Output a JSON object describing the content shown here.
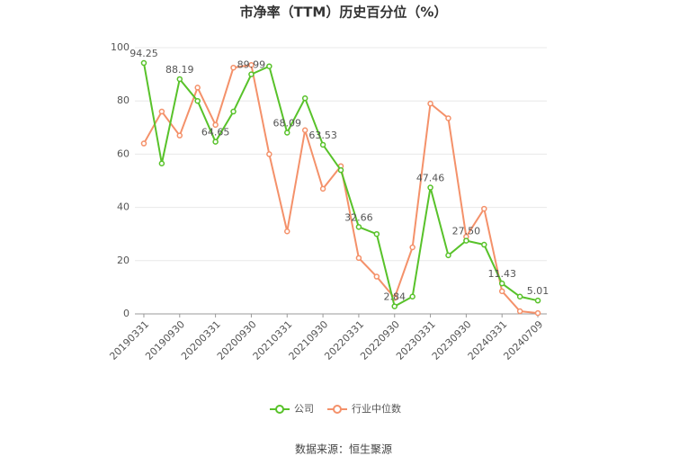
{
  "chart_data": {
    "type": "line",
    "title": "市净率（TTM）历史百分位（%）",
    "categories": [
      "20190331",
      null,
      "20190930",
      null,
      "20200331",
      null,
      "20200930",
      null,
      "20210331",
      null,
      "20210930",
      null,
      "20220331",
      null,
      "20220930",
      null,
      "20230331",
      null,
      "20230930",
      null,
      "20240331",
      null,
      "20240709"
    ],
    "series": [
      {
        "name": "公司",
        "color": "#58c22a",
        "values": [
          94.25,
          56.5,
          88.19,
          80,
          64.65,
          76,
          89.99,
          93,
          68.09,
          81,
          63.53,
          54,
          32.66,
          30,
          2.84,
          6.5,
          47.46,
          22,
          27.5,
          26,
          11.43,
          6.5,
          5.01
        ],
        "value_labels": [
          "94.25",
          null,
          "88.19",
          null,
          "64.65",
          null,
          "89.99",
          null,
          "68.09",
          null,
          "63.53",
          null,
          "32.66",
          null,
          "2.84",
          null,
          "47.46",
          null,
          "27.50",
          null,
          "11.43",
          null,
          "5.01"
        ]
      },
      {
        "name": "行业中位数",
        "color": "#f4916a",
        "values": [
          64,
          76,
          67,
          85,
          71,
          92.5,
          93.5,
          60,
          31,
          69,
          47,
          55.5,
          21,
          14,
          6,
          25,
          79,
          73.5,
          29,
          39.5,
          8.5,
          1,
          0.3
        ]
      }
    ],
    "ylim": [
      0,
      100
    ],
    "yticks": [
      0,
      20,
      40,
      60,
      80,
      100
    ],
    "grid": true,
    "legend": "bottom",
    "source": "数据来源：恒生聚源"
  }
}
